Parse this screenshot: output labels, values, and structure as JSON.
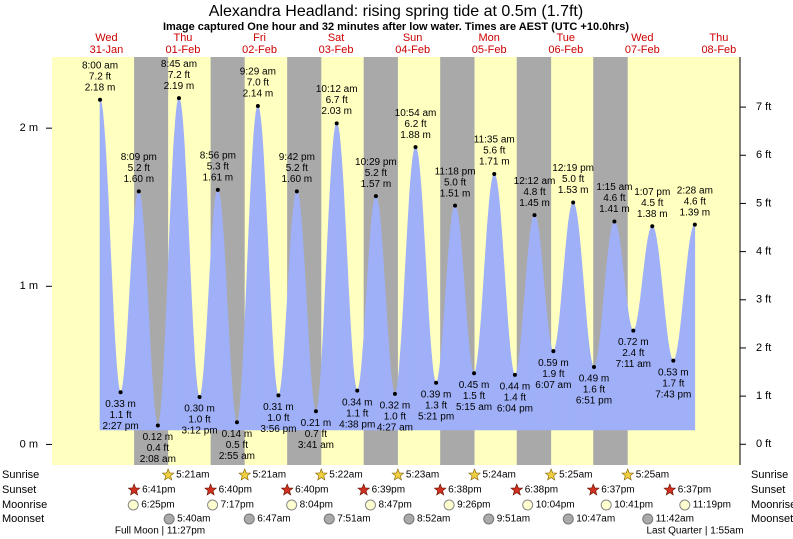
{
  "chart_data": {
    "type": "tide",
    "title": "Alexandra Headland: rising  spring tide at 0.5m (1.7ft)",
    "subtitle": "Image captured One hour and 32 minutes after low water. Times are AEST (UTC +10.0hrs)",
    "ylim": [
      -0.13,
      2.45
    ],
    "yticks": [
      {
        "value": 0,
        "label": "0 m"
      },
      {
        "value": 1,
        "label": "1 m"
      },
      {
        "value": 2,
        "label": "2 m"
      }
    ],
    "y2lim": [
      -0.43,
      8.04
    ],
    "y2ticks": [
      {
        "value": 0,
        "label": "0 ft"
      },
      {
        "value": 1,
        "label": "1 ft"
      },
      {
        "value": 2,
        "label": "2 ft"
      },
      {
        "value": 3,
        "label": "3 ft"
      },
      {
        "value": 4,
        "label": "4 ft"
      },
      {
        "value": 5,
        "label": "5 ft"
      },
      {
        "value": 6,
        "label": "6 ft"
      },
      {
        "value": 7,
        "label": "7 ft"
      }
    ],
    "color": "#9fb0f8",
    "day_color": "#ffffc0",
    "night_color": "#a9a9a9",
    "row_labels": {
      "sunrise": "Sunrise",
      "sunset": "Sunset",
      "moonrise": "Moonrise",
      "moonset": "Moonset"
    },
    "days": [
      {
        "day": "Wed",
        "date": "31-Jan",
        "sunrise": null,
        "sunset": "6:41pm",
        "moonrise": "6:25pm",
        "moonset": null,
        "tides": [
          {
            "time": "8:00 am",
            "ft_label": "7.2 ft",
            "value": 2.18,
            "value_label": "2.18 m"
          },
          {
            "time": "2:27 pm",
            "ft_label": "1.1 ft",
            "value": 0.33,
            "value_label": "0.33 m"
          },
          {
            "time": "8:09 pm",
            "ft_label": "5.2 ft",
            "value": 1.6,
            "value_label": "1.60 m"
          }
        ]
      },
      {
        "day": "Thu",
        "date": "01-Feb",
        "sunrise": "5:21am",
        "sunset": "6:40pm",
        "moonrise": "7:17pm",
        "moonset": "5:40am",
        "tides": [
          {
            "time": "2:08 am",
            "ft_label": "0.4 ft",
            "value": 0.12,
            "value_label": "0.12 m"
          },
          {
            "time": "8:45 am",
            "ft_label": "7.2 ft",
            "value": 2.19,
            "value_label": "2.19 m"
          },
          {
            "time": "3:12 pm",
            "ft_label": "1.0 ft",
            "value": 0.3,
            "value_label": "0.30 m"
          },
          {
            "time": "8:56 pm",
            "ft_label": "5.3 ft",
            "value": 1.61,
            "value_label": "1.61 m"
          }
        ]
      },
      {
        "day": "Fri",
        "date": "02-Feb",
        "sunrise": "5:21am",
        "sunset": "6:40pm",
        "moonrise": "8:04pm",
        "moonset": "6:47am",
        "tides": [
          {
            "time": "2:55 am",
            "ft_label": "0.5 ft",
            "value": 0.14,
            "value_label": "0.14 m"
          },
          {
            "time": "9:29 am",
            "ft_label": "7.0 ft",
            "value": 2.14,
            "value_label": "2.14 m"
          },
          {
            "time": "3:56 pm",
            "ft_label": "1.0 ft",
            "value": 0.31,
            "value_label": "0.31 m"
          },
          {
            "time": "9:42 pm",
            "ft_label": "5.2 ft",
            "value": 1.6,
            "value_label": "1.60 m"
          }
        ]
      },
      {
        "day": "Sat",
        "date": "03-Feb",
        "sunrise": "5:22am",
        "sunset": "6:39pm",
        "moonrise": "8:47pm",
        "moonset": "7:51am",
        "tides": [
          {
            "time": "3:41 am",
            "ft_label": "0.7 ft",
            "value": 0.21,
            "value_label": "0.21 m"
          },
          {
            "time": "10:12 am",
            "ft_label": "6.7 ft",
            "value": 2.03,
            "value_label": "2.03 m"
          },
          {
            "time": "4:38 pm",
            "ft_label": "1.1 ft",
            "value": 0.34,
            "value_label": "0.34 m"
          },
          {
            "time": "10:29 pm",
            "ft_label": "5.2 ft",
            "value": 1.57,
            "value_label": "1.57 m"
          }
        ]
      },
      {
        "day": "Sun",
        "date": "04-Feb",
        "sunrise": "5:23am",
        "sunset": "6:38pm",
        "moonrise": "9:26pm",
        "moonset": "8:52am",
        "tides": [
          {
            "time": "4:27 am",
            "ft_label": "1.0 ft",
            "value": 0.32,
            "value_label": "0.32 m"
          },
          {
            "time": "10:54 am",
            "ft_label": "6.2 ft",
            "value": 1.88,
            "value_label": "1.88 m"
          },
          {
            "time": "5:21 pm",
            "ft_label": "1.3 ft",
            "value": 0.39,
            "value_label": "0.39 m"
          },
          {
            "time": "11:18 pm",
            "ft_label": "5.0 ft",
            "value": 1.51,
            "value_label": "1.51 m"
          }
        ]
      },
      {
        "day": "Mon",
        "date": "05-Feb",
        "sunrise": "5:24am",
        "sunset": "6:38pm",
        "moonrise": "10:04pm",
        "moonset": "9:51am",
        "tides": [
          {
            "time": "5:15 am",
            "ft_label": "1.5 ft",
            "value": 0.45,
            "value_label": "0.45 m"
          },
          {
            "time": "11:35 am",
            "ft_label": "5.6 ft",
            "value": 1.71,
            "value_label": "1.71 m"
          },
          {
            "time": "6:04 pm",
            "ft_label": "1.4 ft",
            "value": 0.44,
            "value_label": "0.44 m"
          }
        ]
      },
      {
        "day": "Tue",
        "date": "06-Feb",
        "sunrise": "5:25am",
        "sunset": "6:37pm",
        "moonrise": "10:41pm",
        "moonset": "10:47am",
        "tides": [
          {
            "time": "12:12 am",
            "ft_label": "4.8 ft",
            "value": 1.45,
            "value_label": "1.45 m"
          },
          {
            "time": "6:07 am",
            "ft_label": "1.9 ft",
            "value": 0.59,
            "value_label": "0.59 m"
          },
          {
            "time": "12:19 pm",
            "ft_label": "5.0 ft",
            "value": 1.53,
            "value_label": "1.53 m"
          },
          {
            "time": "6:51 pm",
            "ft_label": "1.6 ft",
            "value": 0.49,
            "value_label": "0.49 m"
          }
        ]
      },
      {
        "day": "Wed",
        "date": "07-Feb",
        "sunrise": "5:25am",
        "sunset": "6:37pm",
        "moonrise": "11:19pm",
        "moonset": "11:42am",
        "tides": [
          {
            "time": "1:15 am",
            "ft_label": "4.6 ft",
            "value": 1.41,
            "value_label": "1.41 m"
          },
          {
            "time": "7:11 am",
            "ft_label": "2.4 ft",
            "value": 0.72,
            "value_label": "0.72 m"
          },
          {
            "time": "1:07 pm",
            "ft_label": "4.5 ft",
            "value": 1.38,
            "value_label": "1.38 m"
          },
          {
            "time": "7:43 pm",
            "ft_label": "1.7 ft",
            "value": 0.53,
            "value_label": "0.53 m"
          }
        ]
      },
      {
        "day": "Thu",
        "date": "08-Feb",
        "sunrise": null,
        "sunset": null,
        "moonrise": null,
        "moonset": null,
        "tides": [
          {
            "time": "2:28 am",
            "ft_label": "4.6 ft",
            "value": 1.39,
            "value_label": "1.39 m"
          }
        ]
      }
    ],
    "moon_phases": [
      "Full Moon | 11:27pm",
      "Last Quarter | 1:55am"
    ]
  }
}
